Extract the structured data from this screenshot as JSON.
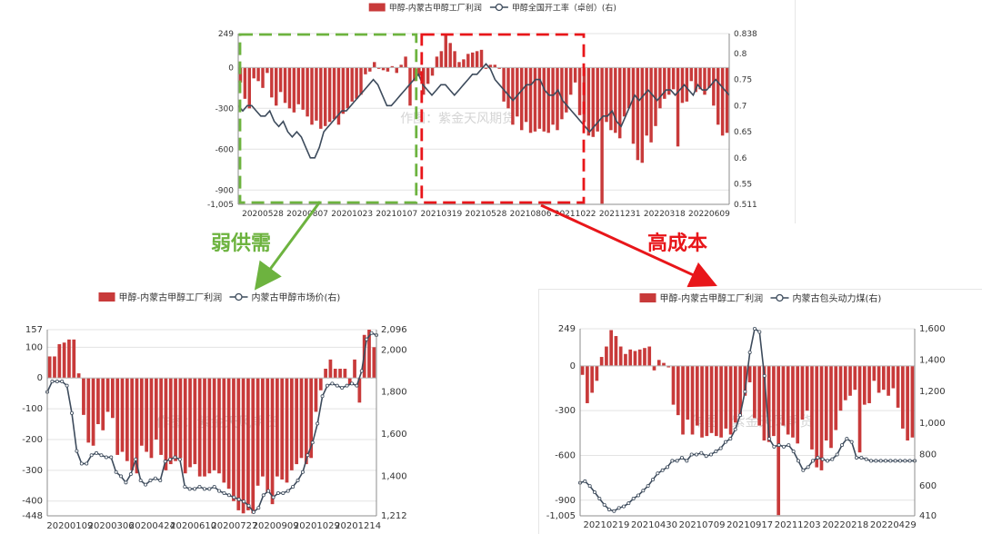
{
  "annotations": {
    "weak_supply_demand": "弱供需",
    "high_cost": "高成本",
    "box_green_color": "#6db33f",
    "box_red_color": "#e8161a",
    "watermark": "作图：紫金天风期货"
  },
  "colors": {
    "bar": "#c83a3a",
    "line": "#3d4b5c"
  },
  "chart_data": [
    {
      "id": "top",
      "type": "bar+line",
      "legend": {
        "bar": "甲醇-内蒙古甲醇工厂利润",
        "line": "甲醇全国开工率（卓创）(右)",
        "placement": "top-center"
      },
      "x_ticks": [
        "20200528",
        "20200807",
        "20201023",
        "20210107",
        "20210319",
        "20210528",
        "20210806",
        "20211022",
        "20211231",
        "20220318",
        "20220609"
      ],
      "y_left": {
        "min": -1005,
        "max": 249,
        "ticks": [
          "249",
          "0",
          "-300",
          "-600",
          "-900",
          "-1,005"
        ],
        "tick_values": [
          249,
          0,
          -300,
          -600,
          -900,
          -1005
        ]
      },
      "y_right": {
        "min": 0.511,
        "max": 0.838,
        "ticks": [
          "0.838",
          "0.8",
          "0.75",
          "0.7",
          "0.65",
          "0.6",
          "0.55",
          "0.511"
        ],
        "tick_values": [
          0.838,
          0.8,
          0.75,
          0.7,
          0.65,
          0.6,
          0.55,
          0.511
        ]
      },
      "bars": [
        -110,
        -230,
        -300,
        -80,
        -100,
        -150,
        -40,
        -220,
        -280,
        -180,
        -260,
        -300,
        -330,
        -270,
        -310,
        -360,
        -420,
        -390,
        -450,
        -430,
        -400,
        -380,
        -420,
        -340,
        -300,
        -250,
        -230,
        -200,
        -50,
        -30,
        40,
        -10,
        -20,
        -30,
        10,
        -40,
        20,
        80,
        -280,
        -100,
        -60,
        -200,
        -120,
        -60,
        80,
        120,
        240,
        180,
        120,
        40,
        60,
        100,
        110,
        120,
        130,
        -10,
        20,
        20,
        -10,
        -250,
        -300,
        -420,
        -360,
        -460,
        -400,
        -480,
        -470,
        -450,
        -470,
        -480,
        -420,
        -460,
        -380,
        -330,
        -200,
        -110,
        -350,
        -400,
        -500,
        -510,
        -470,
        -1000,
        -400,
        -460,
        -480,
        -520,
        -360,
        -300,
        -560,
        -680,
        -700,
        -500,
        -550,
        -430,
        -300,
        -230,
        -200,
        -160,
        -580,
        -260,
        -250,
        -100,
        -180,
        -160,
        -200,
        -150,
        -280,
        -420,
        -500,
        -480
      ],
      "line": [
        0.7,
        0.69,
        0.7,
        0.7,
        0.69,
        0.68,
        0.68,
        0.69,
        0.67,
        0.66,
        0.67,
        0.65,
        0.64,
        0.65,
        0.64,
        0.62,
        0.6,
        0.6,
        0.62,
        0.65,
        0.66,
        0.67,
        0.68,
        0.69,
        0.69,
        0.7,
        0.71,
        0.72,
        0.73,
        0.74,
        0.75,
        0.74,
        0.72,
        0.7,
        0.7,
        0.71,
        0.72,
        0.73,
        0.74,
        0.75,
        0.76,
        0.74,
        0.73,
        0.72,
        0.73,
        0.74,
        0.74,
        0.73,
        0.72,
        0.73,
        0.74,
        0.75,
        0.76,
        0.76,
        0.77,
        0.78,
        0.77,
        0.75,
        0.74,
        0.73,
        0.72,
        0.71,
        0.72,
        0.73,
        0.74,
        0.74,
        0.75,
        0.75,
        0.73,
        0.72,
        0.72,
        0.73,
        0.71,
        0.7,
        0.69,
        0.68,
        0.67,
        0.66,
        0.65,
        0.66,
        0.67,
        0.68,
        0.68,
        0.69,
        0.67,
        0.66,
        0.68,
        0.7,
        0.72,
        0.71,
        0.72,
        0.73,
        0.72,
        0.71,
        0.72,
        0.73,
        0.73,
        0.72,
        0.73,
        0.74,
        0.73,
        0.72,
        0.74,
        0.73,
        0.73,
        0.74,
        0.75,
        0.74,
        0.73,
        0.72
      ]
    },
    {
      "id": "left",
      "type": "bar+line",
      "legend": {
        "bar": "甲醇-内蒙古甲醇工厂利润",
        "line": "内蒙古甲醇市场价(右)",
        "placement": "top-center"
      },
      "x_ticks": [
        "20200109",
        "20200306",
        "20200424",
        "20200610",
        "20200727",
        "20200909",
        "20201029",
        "20201214"
      ],
      "y_left": {
        "min": -448,
        "max": 157,
        "ticks": [
          "157",
          "100",
          "0",
          "-100",
          "-200",
          "-300",
          "-400",
          "-448"
        ],
        "tick_values": [
          157,
          100,
          0,
          -100,
          -200,
          -300,
          -400,
          -448
        ]
      },
      "y_right": {
        "min": 1212,
        "max": 2096,
        "ticks": [
          "2,096",
          "2,000",
          "1,800",
          "1,600",
          "1,400",
          "1,212"
        ],
        "tick_values": [
          2096,
          2000,
          1800,
          1600,
          1400,
          1212
        ]
      },
      "bars": [
        70,
        70,
        110,
        115,
        125,
        125,
        15,
        -120,
        -210,
        -220,
        -150,
        -170,
        -110,
        -130,
        -250,
        -240,
        -270,
        -300,
        -310,
        -220,
        -240,
        -260,
        -200,
        -250,
        -300,
        -280,
        -270,
        -260,
        -310,
        -290,
        -280,
        -320,
        -320,
        -310,
        -300,
        -310,
        -340,
        -360,
        -400,
        -430,
        -440,
        -430,
        -440,
        -350,
        -320,
        -370,
        -410,
        -320,
        -330,
        -340,
        -300,
        -280,
        -260,
        -280,
        -260,
        -110,
        -40,
        30,
        60,
        30,
        30,
        30,
        -20,
        60,
        -80,
        140,
        157,
        100
      ],
      "line": [
        1800,
        1850,
        1850,
        1850,
        1830,
        1700,
        1520,
        1460,
        1460,
        1500,
        1510,
        1500,
        1490,
        1490,
        1420,
        1400,
        1370,
        1410,
        1480,
        1380,
        1360,
        1380,
        1390,
        1380,
        1470,
        1480,
        1490,
        1480,
        1350,
        1340,
        1340,
        1350,
        1340,
        1340,
        1350,
        1330,
        1320,
        1310,
        1300,
        1290,
        1280,
        1260,
        1230,
        1250,
        1310,
        1330,
        1300,
        1320,
        1320,
        1330,
        1350,
        1380,
        1420,
        1500,
        1560,
        1650,
        1780,
        1830,
        1840,
        1830,
        1820,
        1830,
        1840,
        1830,
        1900,
        2050,
        2080,
        2070
      ]
    },
    {
      "id": "right",
      "type": "bar+line",
      "legend": {
        "bar": "甲醇-内蒙古甲醇工厂利润",
        "line": "内蒙古包头动力煤(右)",
        "placement": "top-center"
      },
      "x_ticks": [
        "20210219",
        "20210430",
        "20210709",
        "20210917",
        "20211203",
        "20220218",
        "20220429"
      ],
      "y_left": {
        "min": -1005,
        "max": 249,
        "ticks": [
          "249",
          "0",
          "-300",
          "-600",
          "-900",
          "-1,005"
        ],
        "tick_values": [
          249,
          0,
          -300,
          -600,
          -900,
          -1005
        ]
      },
      "y_right": {
        "min": 410,
        "max": 1600,
        "ticks": [
          "1,600",
          "1,400",
          "1,200",
          "1,000",
          "800",
          "600",
          "410"
        ],
        "tick_values": [
          1600,
          1400,
          1200,
          1000,
          800,
          600,
          410
        ]
      },
      "bars": [
        -60,
        -250,
        -180,
        -100,
        60,
        130,
        240,
        200,
        130,
        80,
        110,
        100,
        110,
        120,
        130,
        -30,
        40,
        20,
        -10,
        -260,
        -330,
        -460,
        -360,
        -460,
        -400,
        -480,
        -470,
        -450,
        -470,
        -480,
        -420,
        -460,
        -380,
        -330,
        -200,
        -110,
        -350,
        -400,
        -500,
        -510,
        -470,
        -1000,
        -400,
        -460,
        -480,
        -520,
        -360,
        -300,
        -560,
        -680,
        -700,
        -500,
        -550,
        -430,
        -300,
        -230,
        -200,
        -160,
        -580,
        -260,
        -250,
        -100,
        -180,
        -160,
        -200,
        -150,
        -280,
        -420,
        -500,
        -480
      ],
      "line": [
        620,
        630,
        600,
        560,
        520,
        480,
        450,
        440,
        460,
        470,
        490,
        520,
        540,
        570,
        600,
        640,
        680,
        700,
        720,
        760,
        760,
        780,
        760,
        800,
        800,
        810,
        790,
        800,
        820,
        840,
        880,
        900,
        960,
        1050,
        1200,
        1450,
        1600,
        1580,
        1300,
        900,
        850,
        860,
        850,
        860,
        820,
        760,
        700,
        720,
        760,
        780,
        770,
        760,
        770,
        800,
        860,
        900,
        880,
        780,
        780,
        770,
        760,
        760,
        760,
        760,
        760,
        760,
        760,
        760,
        760,
        760
      ]
    }
  ]
}
